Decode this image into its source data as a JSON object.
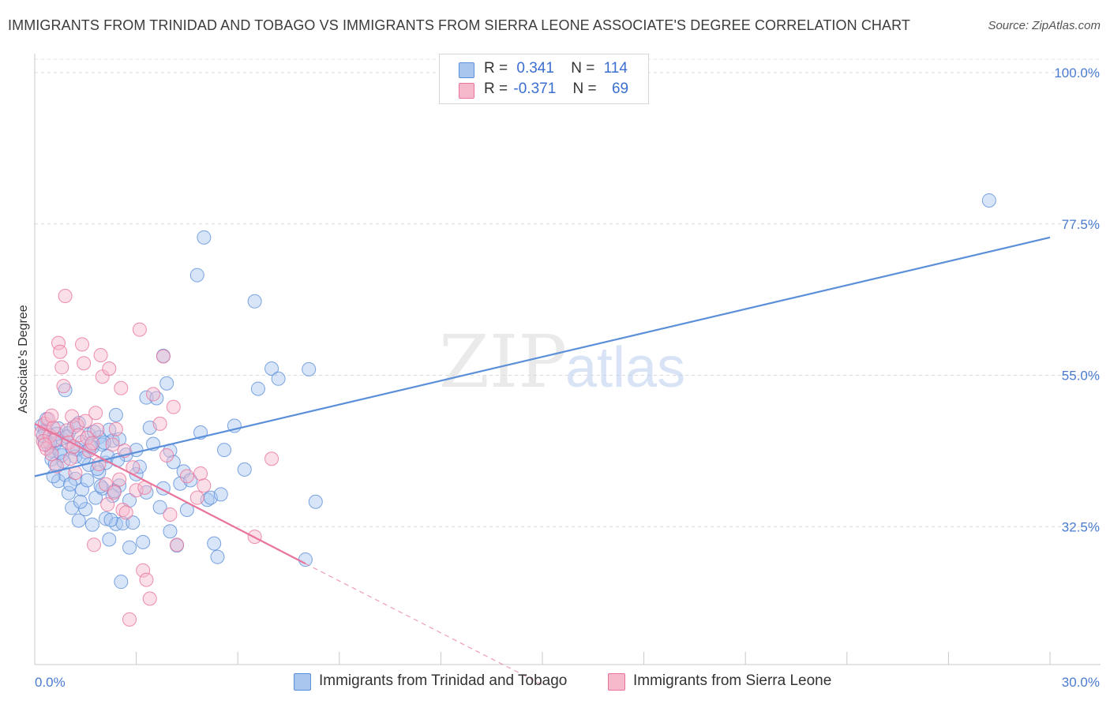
{
  "title": "IMMIGRANTS FROM TRINIDAD AND TOBAGO VS IMMIGRANTS FROM SIERRA LEONE ASSOCIATE'S DEGREE CORRELATION CHART",
  "source": "Source: ZipAtlas.com",
  "watermark": {
    "zip": "ZIP",
    "atlas": "atlas"
  },
  "legend": {
    "r_label": "R =",
    "n_label": "N =",
    "rows": [
      {
        "r": "0.341",
        "n": "114",
        "color": "#a9c6ef"
      },
      {
        "r": "-0.371",
        "n": "69",
        "color": "#f6b8cb"
      }
    ]
  },
  "bottom_legend": [
    {
      "label": "Immigrants from Trinidad and Tobago",
      "color": "#a9c6ef"
    },
    {
      "label": "Immigrants from Sierra Leone",
      "color": "#f6b8cb"
    }
  ],
  "chart_data": {
    "type": "scatter",
    "title": "IMMIGRANTS FROM TRINIDAD AND TOBAGO VS IMMIGRANTS FROM SIERRA LEONE ASSOCIATE'S DEGREE CORRELATION CHART",
    "xlabel": "",
    "ylabel": "Associate's Degree",
    "xlim": [
      0,
      30
    ],
    "ylim": [
      12,
      102
    ],
    "x_tick_labels": [
      "0.0%",
      "30.0%"
    ],
    "y_ticks": [
      32.5,
      55.0,
      77.5,
      100.0
    ],
    "y_tick_labels": [
      "32.5%",
      "55.0%",
      "77.5%",
      "100.0%"
    ],
    "grid": true,
    "legend_position": "top-center",
    "series": [
      {
        "name": "Immigrants from Trinidad and Tobago",
        "color": "#5b8fd9",
        "fill": "#a9c6ef",
        "trend": {
          "x": [
            0,
            30
          ],
          "y": [
            40.0,
            75.5
          ]
        },
        "points": [
          [
            0.2,
            47.5
          ],
          [
            0.3,
            46.8
          ],
          [
            0.3,
            45.2
          ],
          [
            0.4,
            44.6
          ],
          [
            0.5,
            43.8
          ],
          [
            0.5,
            42.5
          ],
          [
            0.6,
            41.8
          ],
          [
            0.6,
            44.9
          ],
          [
            0.7,
            47.1
          ],
          [
            0.7,
            39.3
          ],
          [
            0.8,
            45.6
          ],
          [
            0.8,
            43.1
          ],
          [
            0.9,
            40.2
          ],
          [
            0.9,
            52.8
          ],
          [
            1.0,
            46.4
          ],
          [
            1.0,
            37.5
          ],
          [
            1.1,
            44.2
          ],
          [
            1.1,
            35.3
          ],
          [
            1.2,
            42.9
          ],
          [
            1.2,
            39.6
          ],
          [
            1.3,
            47.9
          ],
          [
            1.3,
            33.4
          ],
          [
            1.4,
            45.1
          ],
          [
            1.4,
            38.0
          ],
          [
            1.5,
            43.6
          ],
          [
            1.5,
            35.1
          ],
          [
            1.6,
            46.2
          ],
          [
            1.6,
            41.7
          ],
          [
            1.7,
            32.8
          ],
          [
            1.7,
            44.3
          ],
          [
            1.8,
            36.8
          ],
          [
            1.9,
            45.8
          ],
          [
            1.9,
            40.6
          ],
          [
            2.0,
            38.2
          ],
          [
            2.0,
            44.7
          ],
          [
            2.1,
            33.7
          ],
          [
            2.1,
            42.0
          ],
          [
            2.2,
            46.9
          ],
          [
            2.2,
            30.6
          ],
          [
            2.3,
            37.1
          ],
          [
            2.3,
            45.3
          ],
          [
            2.4,
            32.9
          ],
          [
            2.4,
            49.1
          ],
          [
            2.5,
            38.6
          ],
          [
            2.5,
            45.5
          ],
          [
            2.6,
            33.0
          ],
          [
            2.7,
            43.2
          ],
          [
            2.8,
            29.4
          ],
          [
            2.8,
            36.4
          ],
          [
            2.9,
            33.1
          ],
          [
            3.0,
            43.9
          ],
          [
            3.0,
            40.3
          ],
          [
            3.1,
            41.4
          ],
          [
            3.2,
            30.2
          ],
          [
            3.3,
            37.6
          ],
          [
            3.3,
            51.7
          ],
          [
            3.4,
            47.2
          ],
          [
            3.5,
            44.8
          ],
          [
            3.6,
            51.6
          ],
          [
            3.7,
            35.4
          ],
          [
            3.8,
            57.9
          ],
          [
            3.8,
            38.2
          ],
          [
            3.9,
            53.8
          ],
          [
            4.0,
            43.8
          ],
          [
            4.0,
            31.8
          ],
          [
            4.1,
            42.1
          ],
          [
            4.2,
            29.7
          ],
          [
            4.3,
            38.9
          ],
          [
            4.4,
            40.7
          ],
          [
            4.5,
            35.0
          ],
          [
            4.6,
            39.4
          ],
          [
            4.8,
            69.9
          ],
          [
            4.9,
            46.5
          ],
          [
            5.0,
            75.5
          ],
          [
            5.1,
            36.5
          ],
          [
            5.2,
            36.8
          ],
          [
            5.3,
            30.0
          ],
          [
            5.4,
            28.0
          ],
          [
            5.5,
            37.3
          ],
          [
            5.6,
            43.9
          ],
          [
            5.9,
            47.5
          ],
          [
            6.2,
            41.0
          ],
          [
            6.5,
            66.0
          ],
          [
            6.6,
            53.0
          ],
          [
            7.0,
            56.0
          ],
          [
            7.2,
            54.5
          ],
          [
            8.0,
            27.6
          ],
          [
            8.1,
            55.9
          ],
          [
            8.3,
            36.2
          ],
          [
            0.25,
            46.0
          ],
          [
            0.35,
            48.5
          ],
          [
            0.45,
            45.0
          ],
          [
            0.55,
            40.0
          ],
          [
            0.65,
            46.3
          ],
          [
            0.75,
            43.5
          ],
          [
            0.85,
            42.2
          ],
          [
            0.95,
            45.9
          ],
          [
            1.05,
            38.8
          ],
          [
            1.15,
            47.3
          ],
          [
            1.25,
            44.0
          ],
          [
            1.35,
            36.2
          ],
          [
            1.45,
            42.7
          ],
          [
            1.55,
            39.4
          ],
          [
            1.65,
            44.5
          ],
          [
            1.75,
            46.6
          ],
          [
            1.85,
            41.1
          ],
          [
            1.95,
            38.5
          ],
          [
            2.05,
            45.0
          ],
          [
            2.15,
            43.0
          ],
          [
            2.25,
            33.5
          ],
          [
            2.35,
            37.8
          ],
          [
            2.45,
            42.4
          ],
          [
            2.55,
            24.3
          ],
          [
            28.2,
            81.0
          ]
        ]
      },
      {
        "name": "Immigrants from Sierra Leone",
        "color": "#e8739b",
        "fill": "#f6b8cb",
        "trend": {
          "x": [
            0,
            8.0
          ],
          "y": [
            47.8,
            27.0
          ]
        },
        "trend_dashed": {
          "x": [
            8.0,
            15.0
          ],
          "y": [
            27.0,
            9.0
          ]
        },
        "points": [
          [
            0.2,
            46.5
          ],
          [
            0.25,
            45.2
          ],
          [
            0.3,
            47.8
          ],
          [
            0.35,
            44.1
          ],
          [
            0.4,
            48.5
          ],
          [
            0.45,
            46.0
          ],
          [
            0.5,
            43.3
          ],
          [
            0.55,
            47.2
          ],
          [
            0.6,
            45.4
          ],
          [
            0.65,
            41.5
          ],
          [
            0.7,
            59.8
          ],
          [
            0.75,
            58.5
          ],
          [
            0.8,
            56.2
          ],
          [
            0.85,
            53.4
          ],
          [
            0.9,
            66.8
          ],
          [
            0.95,
            46.8
          ],
          [
            1.0,
            45.0
          ],
          [
            1.05,
            42.6
          ],
          [
            1.1,
            48.9
          ],
          [
            1.15,
            44.4
          ],
          [
            1.2,
            40.5
          ],
          [
            1.25,
            47.6
          ],
          [
            1.3,
            46.1
          ],
          [
            1.4,
            59.6
          ],
          [
            1.45,
            56.8
          ],
          [
            1.5,
            48.2
          ],
          [
            1.55,
            45.7
          ],
          [
            1.6,
            43.8
          ],
          [
            1.7,
            44.9
          ],
          [
            1.75,
            29.8
          ],
          [
            1.8,
            49.4
          ],
          [
            1.85,
            46.9
          ],
          [
            1.9,
            41.8
          ],
          [
            1.95,
            58.0
          ],
          [
            2.0,
            54.8
          ],
          [
            2.1,
            38.8
          ],
          [
            2.15,
            35.8
          ],
          [
            2.2,
            56.0
          ],
          [
            2.3,
            44.7
          ],
          [
            2.35,
            37.6
          ],
          [
            2.4,
            47.0
          ],
          [
            2.5,
            39.5
          ],
          [
            2.55,
            53.1
          ],
          [
            2.6,
            35.0
          ],
          [
            2.65,
            43.8
          ],
          [
            2.7,
            34.6
          ],
          [
            2.8,
            18.7
          ],
          [
            2.9,
            41.3
          ],
          [
            3.0,
            37.9
          ],
          [
            3.1,
            61.8
          ],
          [
            3.2,
            26.0
          ],
          [
            3.25,
            38.3
          ],
          [
            3.3,
            24.6
          ],
          [
            3.4,
            21.8
          ],
          [
            3.5,
            52.2
          ],
          [
            3.7,
            47.8
          ],
          [
            3.8,
            57.8
          ],
          [
            3.9,
            43.1
          ],
          [
            4.0,
            34.3
          ],
          [
            4.1,
            50.3
          ],
          [
            4.2,
            29.8
          ],
          [
            4.5,
            40.0
          ],
          [
            4.8,
            36.8
          ],
          [
            4.9,
            40.4
          ],
          [
            5.0,
            38.6
          ],
          [
            0.3,
            44.7
          ],
          [
            0.5,
            49.0
          ],
          [
            6.5,
            31.0
          ],
          [
            7.0,
            42.6
          ]
        ]
      }
    ]
  }
}
